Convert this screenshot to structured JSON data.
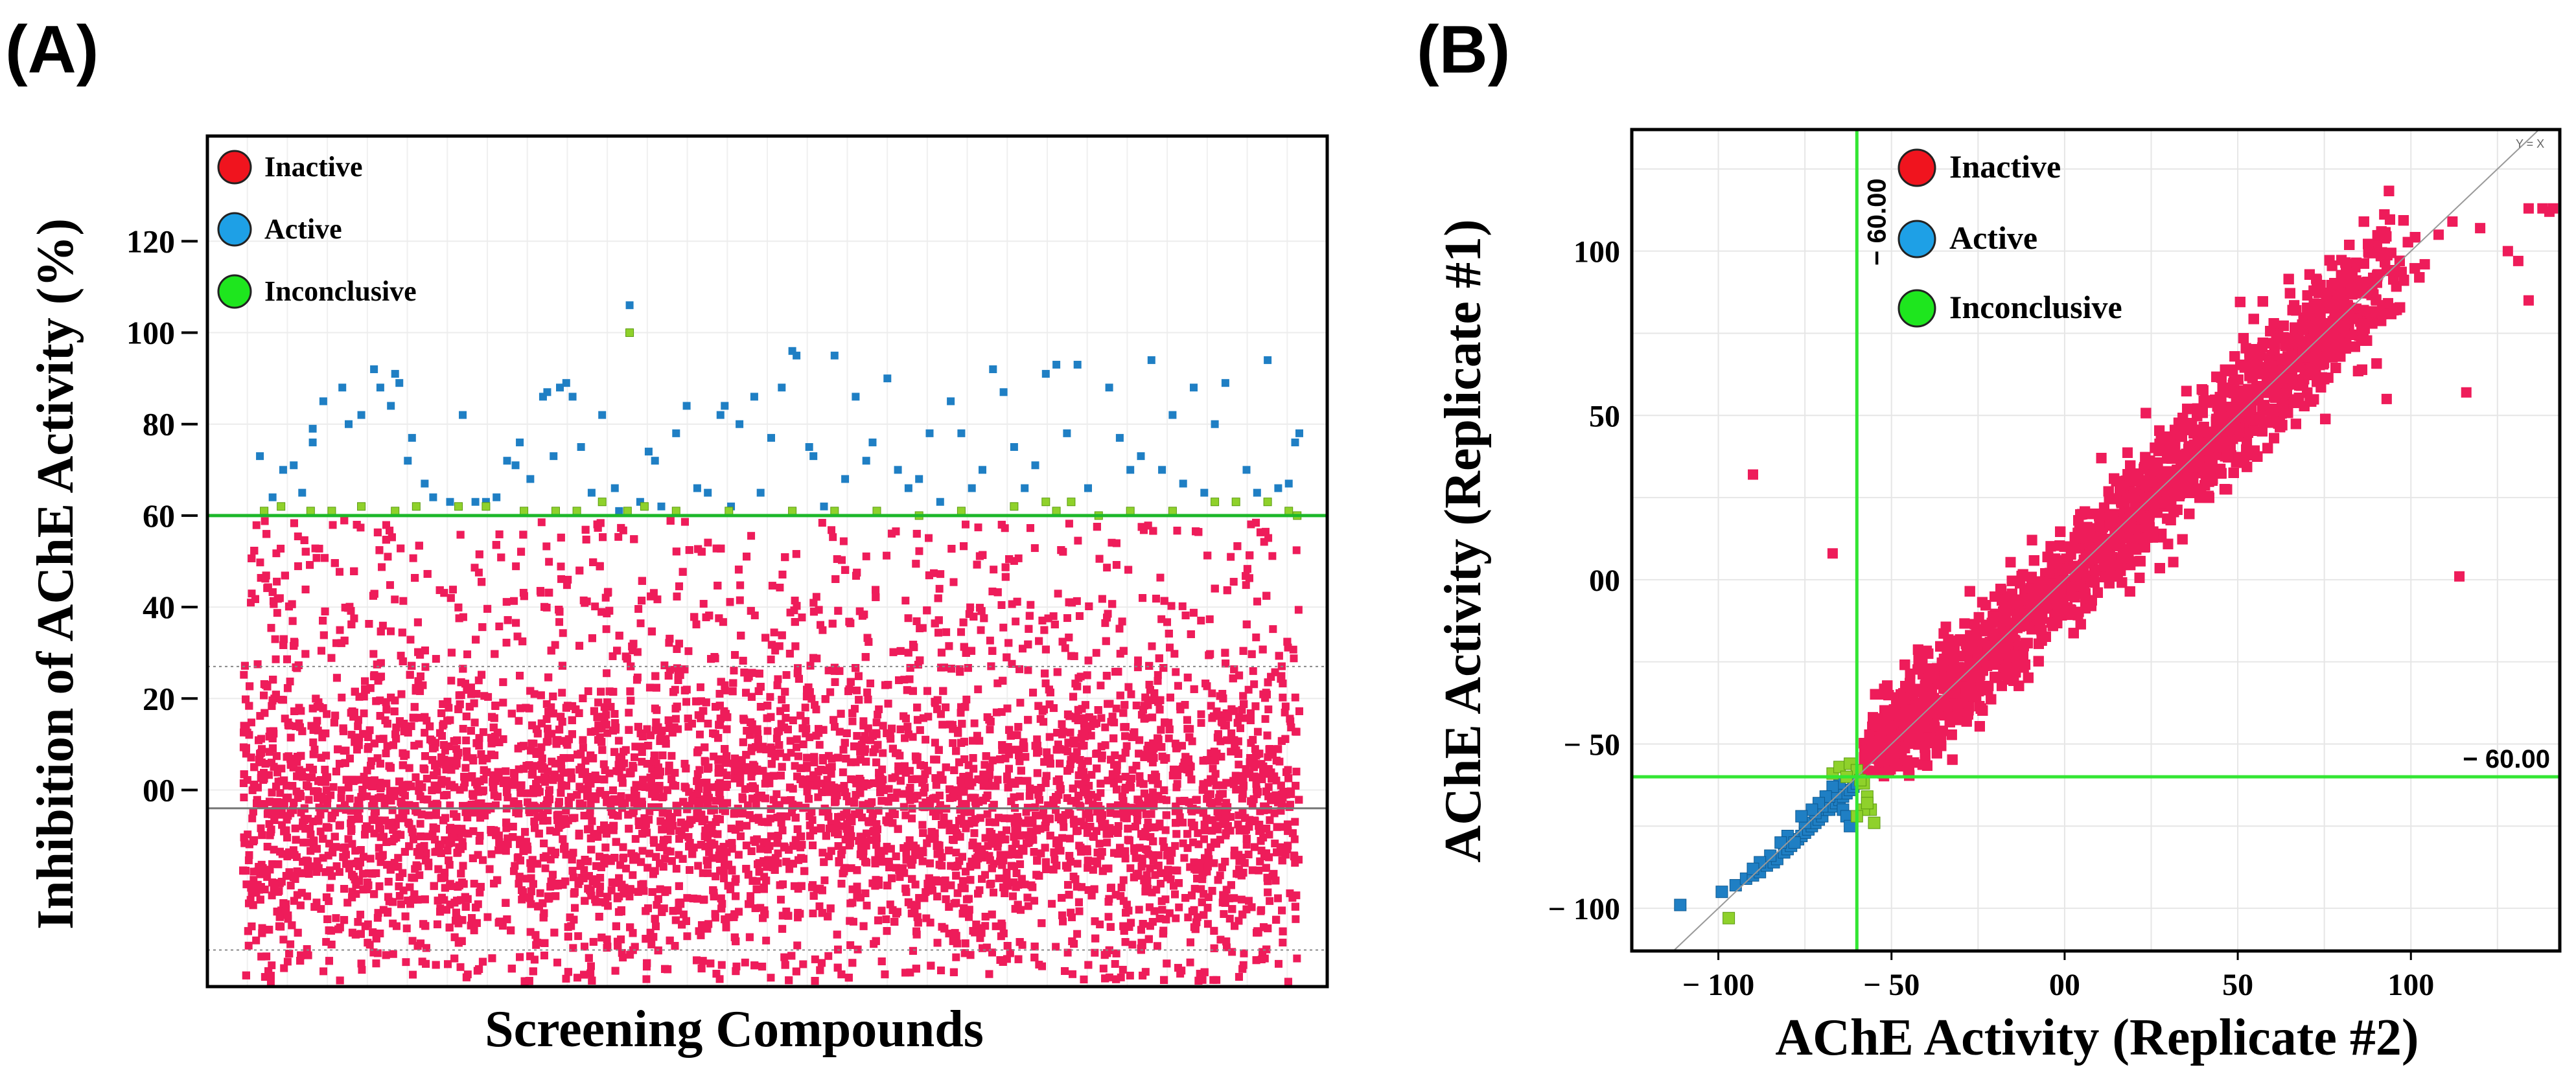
{
  "colors": {
    "inactive_points": "#ee1c5a",
    "active_points": "#1f7fc4",
    "inconclusive_points": "#8fd12b",
    "threshold_line": "#1db82a",
    "threshold_line_b": "#33e633",
    "legend_inactive": "#f0141e",
    "legend_active": "#1ea0e6",
    "legend_inconclusive": "#1ee61e"
  },
  "chart_data": [
    {
      "type": "scatter",
      "panel_label": "(A)",
      "xlabel": "Screening Compounds",
      "ylabel": "Inhibition of AChE Activity (%)",
      "ylim": [
        -43,
        143
      ],
      "yticks": [
        0,
        20,
        40,
        60,
        80,
        100,
        120
      ],
      "ytick_labels": [
        "00",
        "20",
        "40",
        "60",
        "80",
        "100",
        "120"
      ],
      "x_range": [
        0,
        5000
      ],
      "threshold": 60,
      "mean_line": -4,
      "dotted_lines": [
        27,
        -35
      ],
      "grid": true,
      "legend_placement": "top-left",
      "legend": [
        "Inactive",
        "Active",
        "Inconclusive"
      ],
      "series": [
        {
          "name": "Inactive",
          "description_range": [
            -42,
            59
          ],
          "approx_count": 9000
        },
        {
          "name": "Active",
          "points": [
            [
              80,
              73
            ],
            [
              140,
              64
            ],
            [
              190,
              70
            ],
            [
              240,
              71
            ],
            [
              280,
              65
            ],
            [
              330,
              79
            ],
            [
              330,
              76
            ],
            [
              380,
              85
            ],
            [
              420,
              61
            ],
            [
              470,
              88
            ],
            [
              500,
              80
            ],
            [
              560,
              82
            ],
            [
              620,
              92
            ],
            [
              650,
              88
            ],
            [
              700,
              84
            ],
            [
              720,
              91
            ],
            [
              740,
              89
            ],
            [
              780,
              72
            ],
            [
              800,
              77
            ],
            [
              860,
              67
            ],
            [
              900,
              64
            ],
            [
              980,
              63
            ],
            [
              1040,
              82
            ],
            [
              1100,
              63
            ],
            [
              1150,
              63
            ],
            [
              1200,
              64
            ],
            [
              1250,
              72
            ],
            [
              1290,
              71
            ],
            [
              1310,
              76
            ],
            [
              1360,
              68
            ],
            [
              1420,
              86
            ],
            [
              1440,
              87
            ],
            [
              1470,
              73
            ],
            [
              1500,
              88
            ],
            [
              1530,
              89
            ],
            [
              1560,
              86
            ],
            [
              1600,
              75
            ],
            [
              1650,
              65
            ],
            [
              1700,
              82
            ],
            [
              1760,
              66
            ],
            [
              1780,
              61
            ],
            [
              1830,
              106
            ],
            [
              1880,
              63
            ],
            [
              1920,
              74
            ],
            [
              1950,
              72
            ],
            [
              1980,
              62
            ],
            [
              2050,
              78
            ],
            [
              2100,
              84
            ],
            [
              2150,
              66
            ],
            [
              2200,
              65
            ],
            [
              2260,
              82
            ],
            [
              2280,
              84
            ],
            [
              2310,
              62
            ],
            [
              2350,
              80
            ],
            [
              2420,
              86
            ],
            [
              2450,
              65
            ],
            [
              2500,
              77
            ],
            [
              2550,
              88
            ],
            [
              2600,
              96
            ],
            [
              2620,
              95
            ],
            [
              2680,
              75
            ],
            [
              2700,
              73
            ],
            [
              2750,
              62
            ],
            [
              2800,
              95
            ],
            [
              2850,
              68
            ],
            [
              2900,
              86
            ],
            [
              2950,
              72
            ],
            [
              2980,
              76
            ],
            [
              3000,
              61
            ],
            [
              3050,
              90
            ],
            [
              3100,
              70
            ],
            [
              3150,
              66
            ],
            [
              3200,
              68
            ],
            [
              3250,
              78
            ],
            [
              3300,
              63
            ],
            [
              3350,
              85
            ],
            [
              3400,
              78
            ],
            [
              3450,
              66
            ],
            [
              3500,
              70
            ],
            [
              3550,
              92
            ],
            [
              3600,
              87
            ],
            [
              3650,
              75
            ],
            [
              3700,
              66
            ],
            [
              3750,
              71
            ],
            [
              3800,
              91
            ],
            [
              3850,
              93
            ],
            [
              3900,
              78
            ],
            [
              3950,
              93
            ],
            [
              4000,
              66
            ],
            [
              4050,
              60
            ],
            [
              4100,
              88
            ],
            [
              4150,
              77
            ],
            [
              4200,
              70
            ],
            [
              4250,
              73
            ],
            [
              4300,
              94
            ],
            [
              4350,
              70
            ],
            [
              4400,
              82
            ],
            [
              4450,
              67
            ],
            [
              4500,
              88
            ],
            [
              4550,
              65
            ],
            [
              4600,
              80
            ],
            [
              4650,
              89
            ],
            [
              4750,
              70
            ],
            [
              4800,
              65
            ],
            [
              4850,
              94
            ],
            [
              4900,
              66
            ],
            [
              4950,
              67
            ],
            [
              4980,
              76
            ],
            [
              5000,
              78
            ]
          ]
        },
        {
          "name": "Inconclusive",
          "points": [
            [
              100,
              61
            ],
            [
              180,
              62
            ],
            [
              320,
              61
            ],
            [
              420,
              61
            ],
            [
              560,
              62
            ],
            [
              720,
              61
            ],
            [
              820,
              62
            ],
            [
              1020,
              62
            ],
            [
              1150,
              62
            ],
            [
              1330,
              61
            ],
            [
              1480,
              61
            ],
            [
              1580,
              61
            ],
            [
              1700,
              63
            ],
            [
              1820,
              61
            ],
            [
              1830,
              100
            ],
            [
              1900,
              62
            ],
            [
              2050,
              61
            ],
            [
              2300,
              61
            ],
            [
              2600,
              61
            ],
            [
              2800,
              61
            ],
            [
              3000,
              61
            ],
            [
              3200,
              60
            ],
            [
              3400,
              61
            ],
            [
              3650,
              62
            ],
            [
              3800,
              63
            ],
            [
              3850,
              61
            ],
            [
              3920,
              63
            ],
            [
              4050,
              60
            ],
            [
              4200,
              61
            ],
            [
              4400,
              61
            ],
            [
              4600,
              63
            ],
            [
              4700,
              63
            ],
            [
              4850,
              63
            ],
            [
              4950,
              61
            ],
            [
              4990,
              60
            ]
          ]
        }
      ]
    },
    {
      "type": "scatter",
      "panel_label": "(B)",
      "xlabel": "AChE Activity (Replicate #2)",
      "ylabel": "AChE Activity (Replicate #1)",
      "xlim": [
        -125,
        143
      ],
      "ylim": [
        -113,
        137
      ],
      "xticks": [
        -100,
        -50,
        0,
        50,
        100
      ],
      "xtick_labels": [
        "− 100",
        "− 50",
        "00",
        "50",
        "100"
      ],
      "yticks": [
        -100,
        -50,
        0,
        50,
        100
      ],
      "ytick_labels": [
        "− 100",
        "− 50",
        "00",
        "50",
        "100"
      ],
      "threshold_x": -60,
      "threshold_y": -60,
      "threshold_labels": [
        "− 60.00",
        "− 60.00"
      ],
      "diagonal_label": "Y = X",
      "grid": true,
      "legend_placement": "top-left",
      "legend": [
        "Inactive",
        "Active",
        "Inconclusive"
      ],
      "series": [
        {
          "name": "Inactive",
          "description_range": [
            -60,
            137
          ],
          "approx_count": 9000,
          "outliers": [
            [
              -90,
              32
            ],
            [
              -67,
              8
            ],
            [
              114,
              1
            ],
            [
              116,
              57
            ],
            [
              120,
              107
            ],
            [
              128,
              100
            ],
            [
              131,
              97
            ],
            [
              134,
              85
            ],
            [
              134,
              113
            ],
            [
              138,
              113
            ],
            [
              140,
              112
            ],
            [
              141,
              113
            ],
            [
              93,
              94
            ],
            [
              98,
              91
            ],
            [
              104,
              96
            ],
            [
              108,
              105
            ],
            [
              112,
              109
            ],
            [
              95,
              82
            ],
            [
              90,
              85
            ],
            [
              93,
              55
            ]
          ]
        },
        {
          "name": "Active",
          "points": [
            [
              -111,
              -99
            ],
            [
              -99,
              -95
            ],
            [
              -95,
              -93
            ],
            [
              -92,
              -91
            ],
            [
              -90,
              -90
            ],
            [
              -88,
              -89
            ],
            [
              -86,
              -87
            ],
            [
              -84,
              -86
            ],
            [
              -83,
              -85
            ],
            [
              -81,
              -83
            ],
            [
              -80,
              -82
            ],
            [
              -79,
              -81
            ],
            [
              -77,
              -79
            ],
            [
              -76,
              -78
            ],
            [
              -75,
              -77
            ],
            [
              -74,
              -76
            ],
            [
              -73,
              -75
            ],
            [
              -72,
              -74
            ],
            [
              -71,
              -73
            ],
            [
              -70,
              -72
            ],
            [
              -69,
              -70
            ],
            [
              -68,
              -70
            ],
            [
              -67,
              -69
            ],
            [
              -66,
              -68
            ],
            [
              -65,
              -67
            ],
            [
              -64,
              -66
            ],
            [
              -63,
              -65
            ],
            [
              -62,
              -64
            ],
            [
              -61,
              -63
            ],
            [
              -60,
              -62
            ],
            [
              -80,
              -78
            ],
            [
              -78,
              -80
            ],
            [
              -75,
              -74
            ],
            [
              -72,
              -71
            ],
            [
              -70,
              -69
            ],
            [
              -68,
              -66
            ],
            [
              -66,
              -65
            ],
            [
              -65,
              -62
            ],
            [
              -64,
              -70
            ],
            [
              -63,
              -72
            ],
            [
              -62,
              -75
            ],
            [
              -67,
              -63
            ],
            [
              -69,
              -66
            ],
            [
              -71,
              -68
            ],
            [
              -73,
              -70
            ],
            [
              -76,
              -72
            ],
            [
              -85,
              -84
            ],
            [
              -88,
              -86
            ],
            [
              -90,
              -88
            ],
            [
              -82,
              -80
            ]
          ]
        },
        {
          "name": "Inconclusive",
          "points": [
            [
              -97,
              -103
            ],
            [
              -67,
              -59
            ],
            [
              -65,
              -57
            ],
            [
              -62,
              -56
            ],
            [
              -60,
              -58
            ],
            [
              -58,
              -62
            ],
            [
              -57,
              -66
            ],
            [
              -56,
              -70
            ],
            [
              -55,
              -74
            ],
            [
              -58,
              -70
            ],
            [
              -60,
              -72
            ],
            [
              -57,
              -68
            ],
            [
              -63,
              -60
            ],
            [
              -59,
              -61
            ]
          ]
        }
      ]
    }
  ]
}
